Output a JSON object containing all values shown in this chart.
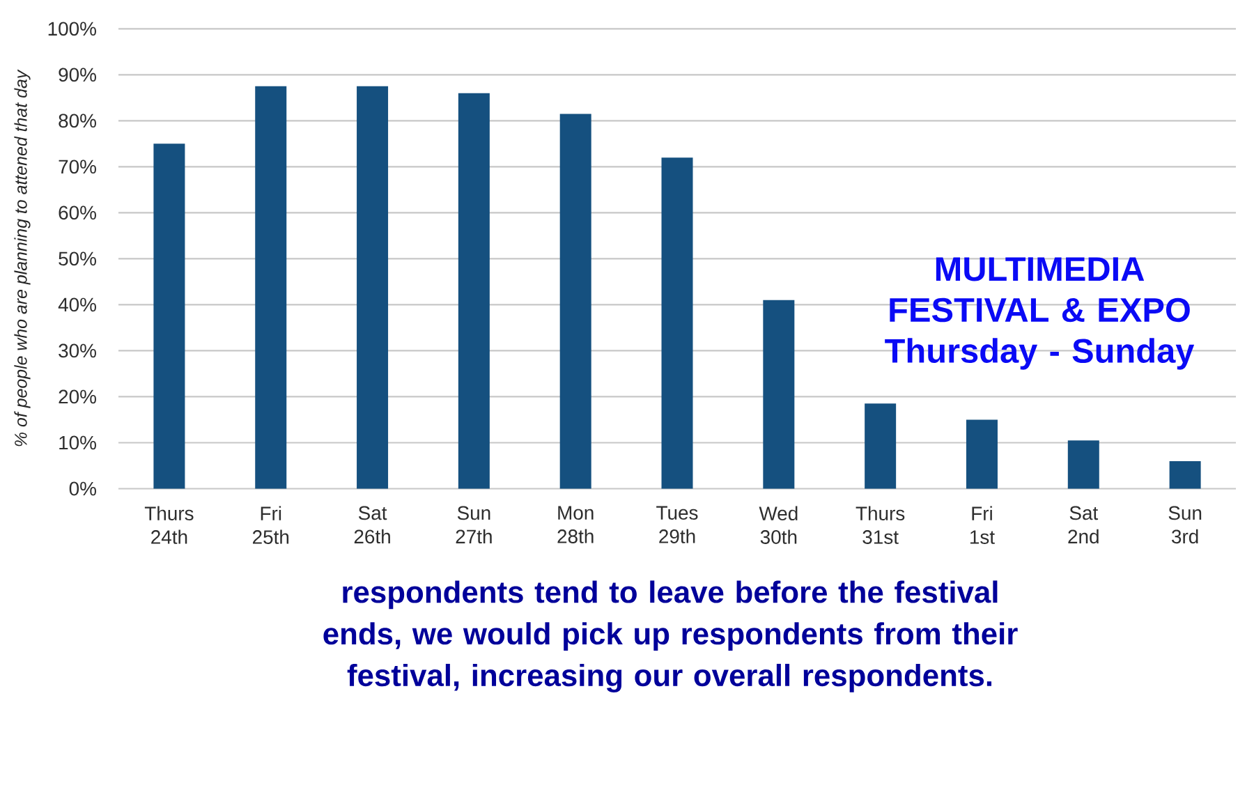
{
  "chart_data": {
    "type": "bar",
    "categories": [
      "Thurs 24th",
      "Fri 25th",
      "Sat 26th",
      "Sun 27th",
      "Mon 28th",
      "Tues 29th",
      "Wed 30th",
      "Thurs 31st",
      "Fri 1st",
      "Sat 2nd",
      "Sun 3rd"
    ],
    "values": [
      75,
      87.5,
      87.5,
      86,
      81.5,
      72,
      41,
      18.5,
      15,
      10.5,
      6
    ],
    "color": "#15507f",
    "ylabel": "% of people who are planning to attened that day",
    "ylim": [
      0,
      100
    ],
    "yticks": [
      {
        "value": 0,
        "label": "0%"
      },
      {
        "value": 10,
        "label": "10%"
      },
      {
        "value": 20,
        "label": "20%"
      },
      {
        "value": 30,
        "label": "30%"
      },
      {
        "value": 40,
        "label": "40%"
      },
      {
        "value": 50,
        "label": "50%"
      },
      {
        "value": 60,
        "label": "60%"
      },
      {
        "value": 70,
        "label": "70%"
      },
      {
        "value": 80,
        "label": "80%"
      },
      {
        "value": 90,
        "label": "90%"
      },
      {
        "value": 100,
        "label": "100%"
      }
    ],
    "grid": "y",
    "annotations": [
      "MULTIMEDIA FESTIVAL & EXPO",
      "Thursday - Sunday",
      "respondents tend to leave before the festival ends, we would pick up respondents from their festival, increasing our overall respondents."
    ]
  }
}
